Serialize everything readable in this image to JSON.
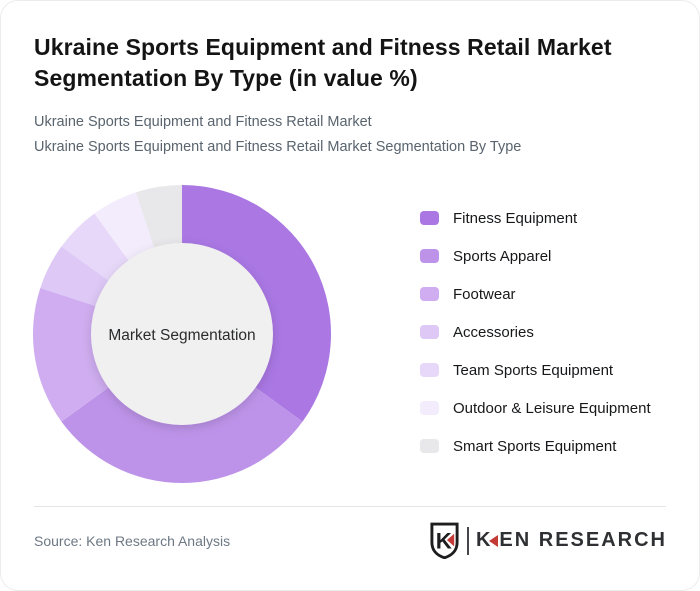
{
  "page": {
    "title_line1": "Ukraine Sports Equipment and Fitness Retail Market",
    "title_line2": "Segmentation By Type (in value %)",
    "subtitle_line1": "Ukraine Sports Equipment and Fitness Retail Market",
    "subtitle_line2": "Ukraine Sports Equipment and Fitness Retail Market Segmentation By Type"
  },
  "chart_data": {
    "type": "pie",
    "variant": "donut",
    "title": "Ukraine Sports Equipment and Fitness Retail Market Segmentation By Type (in value %)",
    "center_label": "Market Segmentation",
    "unit": "percent",
    "start_angle_deg": 0,
    "direction": "clockwise",
    "legend_position": "right",
    "hole_fill": "#f0f0f0",
    "categories": [
      "Fitness Equipment",
      "Sports Apparel",
      "Footwear",
      "Accessories",
      "Team Sports Equipment",
      "Outdoor & Leisure Equipment",
      "Smart Sports Equipment"
    ],
    "values": [
      35,
      30,
      15,
      5,
      5,
      5,
      5
    ],
    "colors": [
      "#aa77e3",
      "#bd93e9",
      "#cfadf0",
      "#ddc8f6",
      "#e7d8f9",
      "#f3ecfc",
      "#e8e7e9"
    ]
  },
  "footer": {
    "source_text": "Source: Ken Research Analysis",
    "brand": {
      "shield_letter": "K",
      "wordmark_first": "K",
      "wordmark_rest": "EN RESEARCH",
      "accent_color": "#c43a36"
    }
  }
}
